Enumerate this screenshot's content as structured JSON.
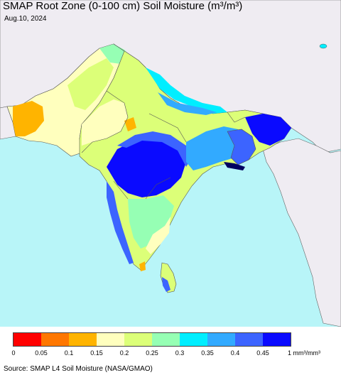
{
  "map": {
    "title": "SMAP Root Zone (0-100 cm) Soil Moisture (m³/m³)",
    "date": "Aug.10, 2024",
    "source": "Source: SMAP L4 Soil Moisture (NASA/GMAO)",
    "colors": {
      "ocean": "#b8f5f8",
      "no_data_land": "#efecf2",
      "border": "#555555"
    }
  },
  "legend": {
    "colors": [
      "#ff0000",
      "#ff7700",
      "#ffb400",
      "#ffffbe",
      "#dcff78",
      "#96ffb4",
      "#00eeff",
      "#32aaff",
      "#3c64ff",
      "#0a0aff"
    ],
    "labels": [
      "0",
      "0.05",
      "0.1",
      "0.15",
      "0.2",
      "0.25",
      "0.3",
      "0.35",
      "0.4",
      "0.45",
      "1 mm³/mm³"
    ]
  }
}
